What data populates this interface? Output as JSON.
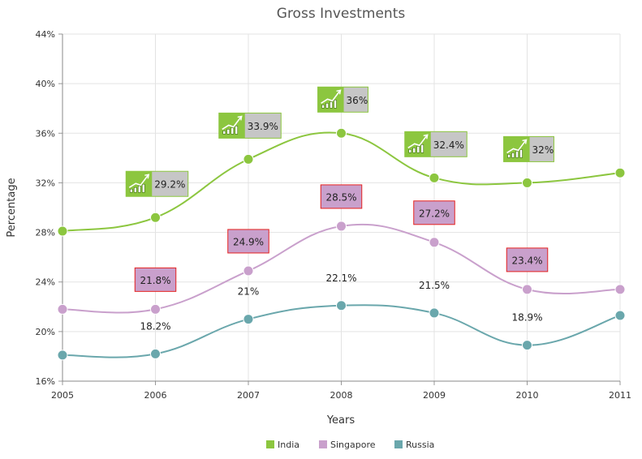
{
  "chart_data": {
    "type": "line",
    "title": "Gross Investments",
    "xlabel": "Years",
    "ylabel": "Percentage",
    "x": [
      2005,
      2006,
      2007,
      2008,
      2009,
      2010,
      2011
    ],
    "xticks": [
      "2005",
      "2006",
      "2007",
      "2008",
      "2009",
      "2010",
      "2011"
    ],
    "ylim": [
      16,
      44
    ],
    "yticks": [
      "16%",
      "20%",
      "24%",
      "28%",
      "32%",
      "36%",
      "40%",
      "44%"
    ],
    "grid": true,
    "legend_position": "bottom",
    "series": [
      {
        "name": "India",
        "color": "#8cc63f",
        "values": [
          28.1,
          29.2,
          33.9,
          36.0,
          32.4,
          32.0,
          32.8
        ],
        "labels": [
          "",
          "29.2%",
          "33.9%",
          "36%",
          "32.4%",
          "32%",
          ""
        ],
        "label_style": "icon-box"
      },
      {
        "name": "Singapore",
        "color": "#c9a0cc",
        "values": [
          21.8,
          21.8,
          24.9,
          28.5,
          27.2,
          23.4,
          23.4
        ],
        "labels": [
          "",
          "21.8%",
          "24.9%",
          "28.5%",
          "27.2%",
          "23.4%",
          ""
        ],
        "label_style": "red-box"
      },
      {
        "name": "Russia",
        "color": "#6aa7ac",
        "values": [
          18.1,
          18.2,
          21.0,
          22.1,
          21.5,
          18.9,
          21.3
        ],
        "labels": [
          "",
          "18.2%",
          "21%",
          "22.1%",
          "21.5%",
          "18.9%",
          ""
        ],
        "label_style": "plain"
      }
    ]
  },
  "icon": "trending-up-chart-icon"
}
